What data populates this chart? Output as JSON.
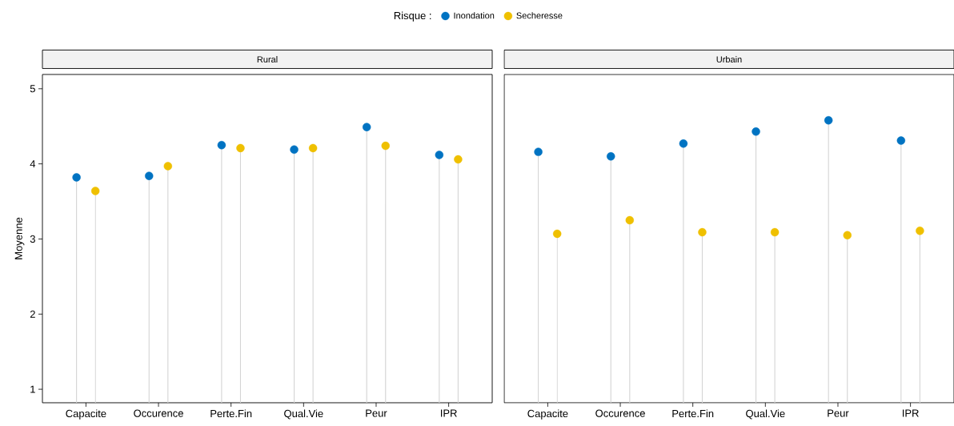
{
  "chart_data": [
    {
      "type": "lollipop",
      "title": "Rural",
      "ylabel": "Moyenne",
      "legend": "top",
      "legend_title": "Risque :",
      "categories": [
        "Capacite",
        "Occurence",
        "Perte.Fin",
        "Qual.Vie",
        "Peur",
        "IPR"
      ],
      "series": [
        {
          "name": "Inondation",
          "color": "#0073c2",
          "values": [
            3.82,
            3.84,
            4.25,
            4.19,
            4.49,
            4.12
          ]
        },
        {
          "name": "Secheresse",
          "color": "#efc000",
          "values": [
            3.64,
            3.97,
            4.21,
            4.21,
            4.24,
            4.06
          ]
        }
      ],
      "ylim": [
        0.82,
        5.19
      ],
      "yticks": [
        1,
        2,
        3,
        4,
        5
      ]
    },
    {
      "type": "lollipop",
      "title": "Urbain",
      "tick_labels": "x",
      "categories": [
        "Capacite",
        "Occurence",
        "Perte.Fin",
        "Qual.Vie",
        "Peur",
        "IPR"
      ],
      "series": [
        {
          "color": "#0073c2",
          "values": [
            4.16,
            4.1,
            4.27,
            4.43,
            4.58,
            4.31
          ]
        },
        {
          "color": "#efc000",
          "values": [
            3.07,
            3.25,
            3.09,
            3.09,
            3.05,
            3.11
          ]
        }
      ],
      "ylim": [
        0.82,
        5.19
      ],
      "yticks": [
        1,
        2,
        3,
        4,
        5
      ]
    }
  ]
}
